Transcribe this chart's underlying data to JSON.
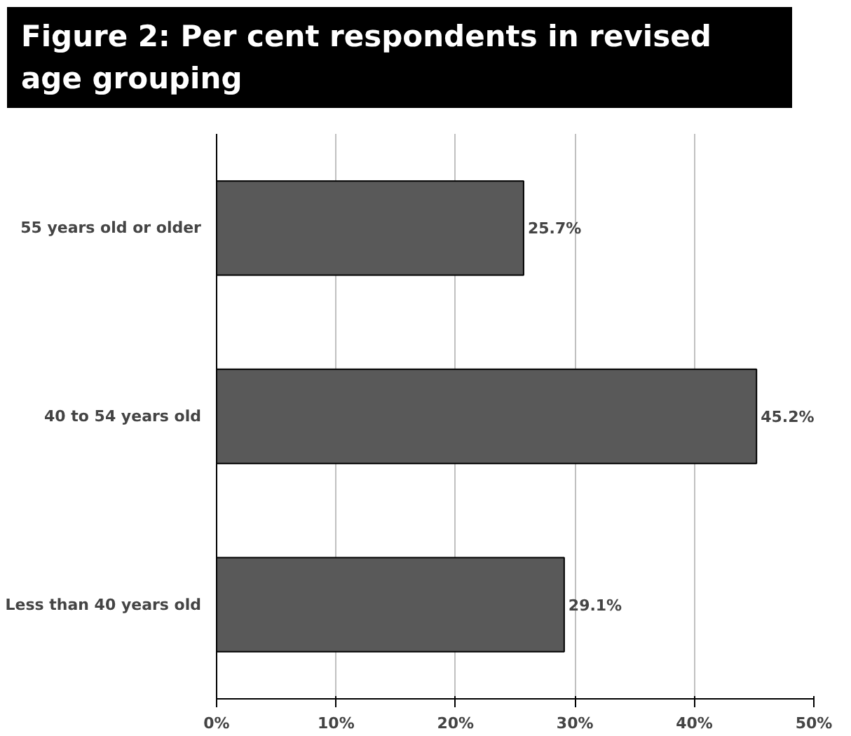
{
  "chart_data": {
    "type": "bar",
    "orientation": "horizontal",
    "title": "Figure 2: Per cent respondents in revised age grouping",
    "categories": [
      "55 years old or older",
      "40 to 54 years old",
      "Less than 40 years old"
    ],
    "values": [
      25.7,
      45.2,
      29.1
    ],
    "color": "#595959",
    "value_labels": [
      "25.7%",
      "45.2%",
      "29.1%"
    ],
    "xlim": [
      0,
      50
    ],
    "xticks": [
      {
        "value": 0,
        "label": "0%"
      },
      {
        "value": 10,
        "label": "10%"
      },
      {
        "value": 20,
        "label": "20%"
      },
      {
        "value": 30,
        "label": "30%"
      },
      {
        "value": 40,
        "label": "40%"
      },
      {
        "value": 50,
        "label": "50%"
      }
    ],
    "grid": "x"
  }
}
